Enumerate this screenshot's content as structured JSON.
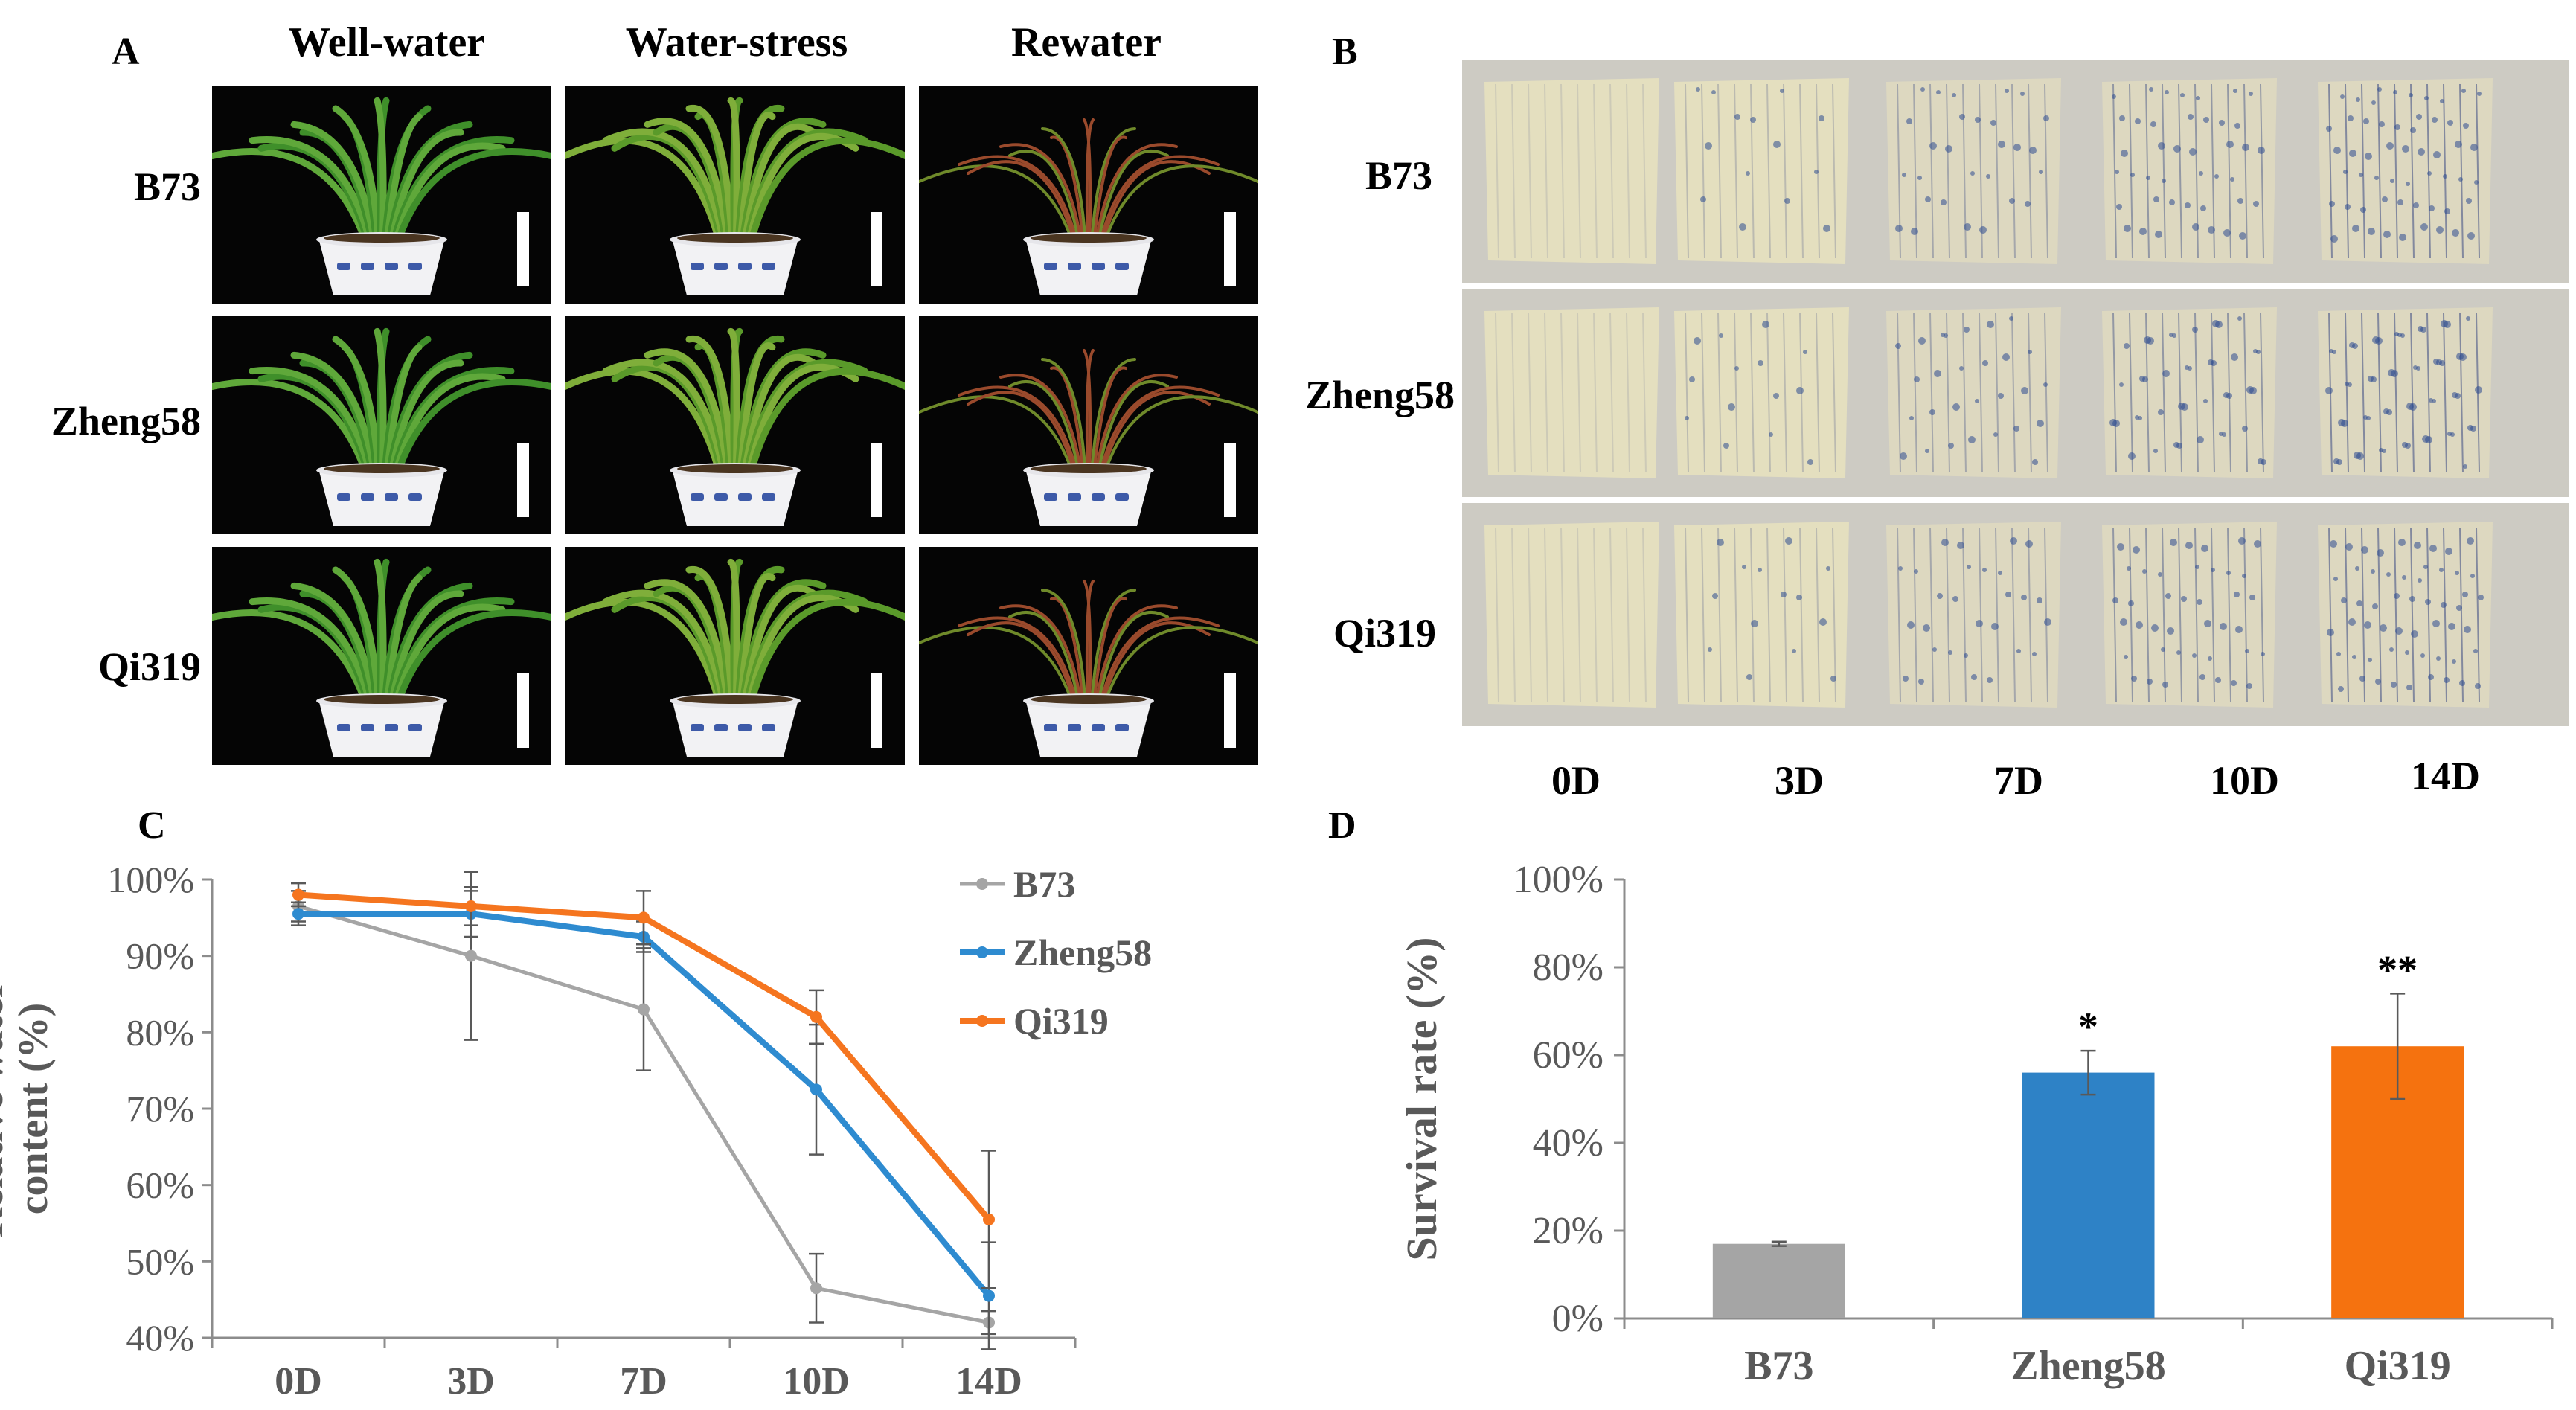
{
  "panelA": {
    "label": "A",
    "columns": [
      "Well-water",
      "Water-stress",
      "Rewater"
    ],
    "rows": [
      "B73",
      "Zheng58",
      "Qi319"
    ]
  },
  "panelB": {
    "label": "B",
    "rows": [
      "B73",
      "Zheng58",
      "Qi319"
    ],
    "days": [
      "0D",
      "3D",
      "7D",
      "10D",
      "14D"
    ]
  },
  "chart_data": [
    {
      "panel": "C",
      "type": "line",
      "ylabel_line1": "Relative water",
      "ylabel_line2": "content (%)",
      "categories": [
        "0D",
        "3D",
        "7D",
        "10D",
        "14D"
      ],
      "yticks": [
        "40%",
        "50%",
        "60%",
        "70%",
        "80%",
        "90%",
        "100%"
      ],
      "ylim": [
        40,
        100
      ],
      "legend_position": "top-right",
      "series": [
        {
          "name": "B73",
          "color": "#a5a5a5",
          "values": [
            96.5,
            90,
            83,
            46.5,
            42
          ],
          "errors": [
            2,
            11,
            8,
            4.5,
            1.5
          ]
        },
        {
          "name": "Zheng58",
          "color": "#2e8bd0",
          "values": [
            95.5,
            95.5,
            92.5,
            72.5,
            45.5
          ],
          "errors": [
            1.5,
            3,
            2,
            8.5,
            7
          ]
        },
        {
          "name": "Qi319",
          "color": "#f5751f",
          "values": [
            98,
            96.5,
            95,
            82,
            55.5
          ],
          "errors": [
            1.5,
            2.5,
            3.5,
            3.5,
            9
          ]
        }
      ]
    },
    {
      "panel": "D",
      "type": "bar",
      "ylabel": "Survival rate (%)",
      "categories": [
        "B73",
        "Zheng58",
        "Qi319"
      ],
      "values": [
        17,
        56,
        62
      ],
      "errors": [
        0.5,
        5,
        12
      ],
      "significance": [
        "",
        "*",
        "**"
      ],
      "colors": [
        "#a5a5a5",
        "#2e82c6",
        "#f5720f"
      ],
      "yticks": [
        "0%",
        "20%",
        "40%",
        "60%",
        "80%",
        "100%"
      ],
      "ylim": [
        0,
        100
      ]
    }
  ]
}
